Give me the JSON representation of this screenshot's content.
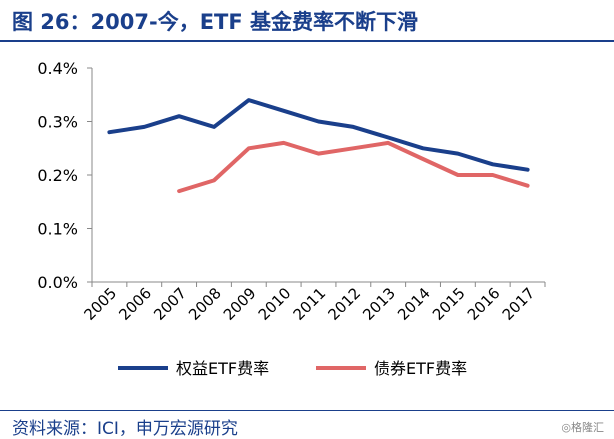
{
  "header": {
    "title": "图 26：2007-今，ETF 基金费率不断下滑"
  },
  "footer": {
    "source": "资料来源：ICI，申万宏源研究",
    "watermark": "◎格隆汇"
  },
  "chart_data": {
    "type": "line",
    "title": "",
    "xlabel": "",
    "ylabel": "",
    "x": [
      "2005",
      "2006",
      "2007",
      "2008",
      "2009",
      "2010",
      "2011",
      "2012",
      "2013",
      "2014",
      "2015",
      "2016",
      "2017"
    ],
    "y_unit": "%",
    "ylim": [
      0,
      0.4
    ],
    "yticks": [
      0.0,
      0.1,
      0.2,
      0.3,
      0.4
    ],
    "ytick_labels": [
      "0.0%",
      "0.1%",
      "0.2%",
      "0.3%",
      "0.4%"
    ],
    "grid": false,
    "legend_position": "bottom",
    "series": [
      {
        "name": "权益ETF费率",
        "color": "#1a3f8b",
        "values": [
          0.28,
          0.29,
          0.31,
          0.29,
          0.34,
          0.32,
          0.3,
          0.29,
          0.27,
          0.25,
          0.24,
          0.22,
          0.21
        ]
      },
      {
        "name": "债券ETF费率",
        "color": "#e06666",
        "values": [
          null,
          null,
          0.17,
          0.19,
          0.25,
          0.26,
          0.24,
          0.25,
          0.26,
          0.23,
          0.2,
          0.2,
          0.18
        ]
      }
    ]
  }
}
